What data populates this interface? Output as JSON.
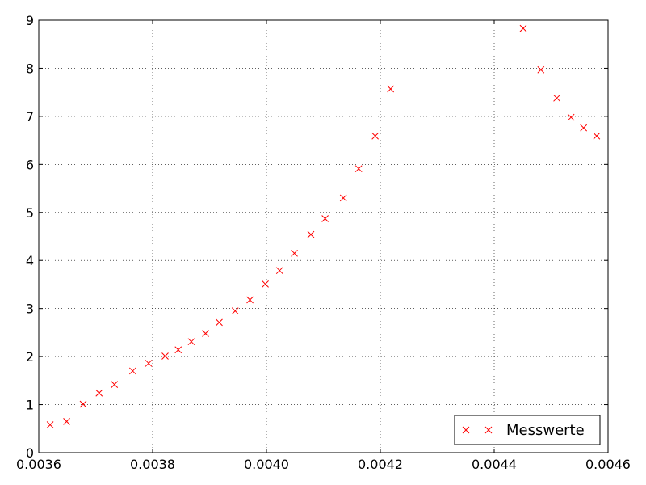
{
  "chart_data": {
    "type": "scatter",
    "title": "",
    "xlabel": "",
    "ylabel": "",
    "xlim": [
      0.0036,
      0.0046
    ],
    "ylim": [
      0,
      9
    ],
    "x_ticks": [
      0.0036,
      0.0038,
      0.004,
      0.0042,
      0.0044,
      0.0046
    ],
    "x_tick_labels": [
      "0.0036",
      "0.0038",
      "0.0040",
      "0.0042",
      "0.0044",
      "0.0046"
    ],
    "y_ticks": [
      0,
      1,
      2,
      3,
      4,
      5,
      6,
      7,
      8,
      9
    ],
    "y_tick_labels": [
      "0",
      "1",
      "2",
      "3",
      "4",
      "5",
      "6",
      "7",
      "8",
      "9"
    ],
    "grid": true,
    "legend_position": "bottom-right",
    "series": [
      {
        "name": "Messwerte",
        "marker": "x",
        "color": "#ff0000",
        "x": [
          0.00362,
          0.003649,
          0.003678,
          0.003706,
          0.003733,
          0.003765,
          0.003793,
          0.003822,
          0.003845,
          0.003868,
          0.003893,
          0.003917,
          0.003945,
          0.003971,
          0.003998,
          0.004023,
          0.004049,
          0.004078,
          0.004103,
          0.004135,
          0.004162,
          0.004191,
          0.004218,
          0.004451,
          0.004482,
          0.00451,
          0.004535,
          0.004557,
          0.00458
        ],
        "y": [
          0.58,
          0.65,
          1.01,
          1.24,
          1.42,
          1.7,
          1.86,
          2.01,
          2.14,
          2.31,
          2.48,
          2.71,
          2.95,
          3.18,
          3.51,
          3.79,
          4.15,
          4.54,
          4.87,
          5.3,
          5.91,
          6.59,
          7.57,
          8.83,
          7.97,
          7.38,
          6.98,
          6.76,
          6.59
        ]
      }
    ]
  }
}
